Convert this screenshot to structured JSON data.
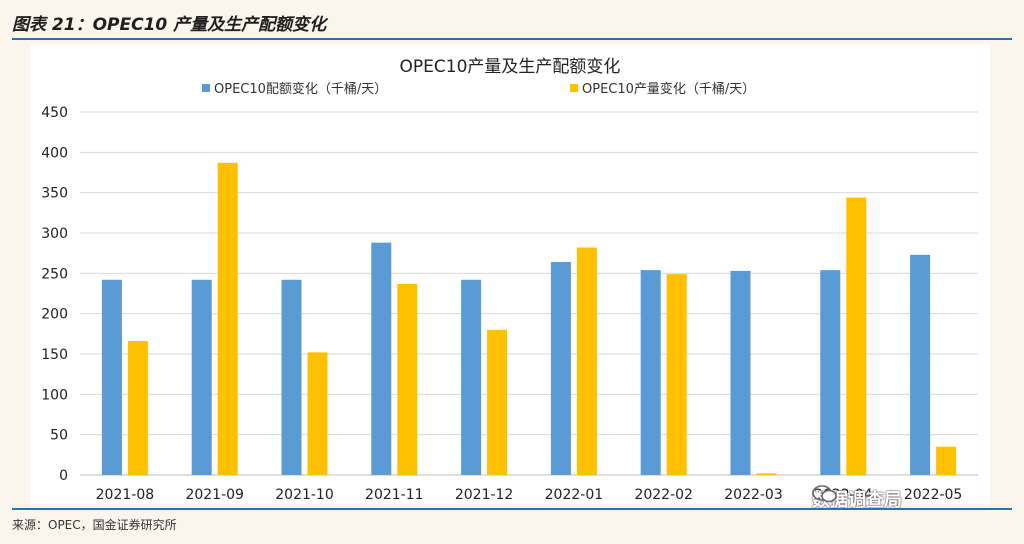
{
  "figure_title": "图表 21：OPEC10 产量及生产配额变化",
  "source": "来源：OPEC，国金证券研究所",
  "watermark": "数据调查局",
  "colors": {
    "series1": "#5b9bd5",
    "series2": "#ffc000",
    "rule": "#2a6fb5"
  },
  "chart_data": {
    "type": "bar",
    "title": "OPEC10产量及生产配额变化",
    "categories": [
      "2021-08",
      "2021-09",
      "2021-10",
      "2021-11",
      "2021-12",
      "2022-01",
      "2022-02",
      "2022-03",
      "2022-04",
      "2022-05"
    ],
    "series": [
      {
        "name": "OPEC10配额变化（千桶/天）",
        "values": [
          242,
          242,
          242,
          288,
          242,
          264,
          254,
          253,
          254,
          273
        ]
      },
      {
        "name": "OPEC10产量变化（千桶/天）",
        "values": [
          166,
          387,
          152,
          237,
          180,
          282,
          249,
          2,
          344,
          35
        ]
      }
    ],
    "ylim": [
      0,
      450
    ],
    "yticks": [
      0,
      50,
      100,
      150,
      200,
      250,
      300,
      350,
      400,
      450
    ],
    "grid": true,
    "legend": "top"
  }
}
